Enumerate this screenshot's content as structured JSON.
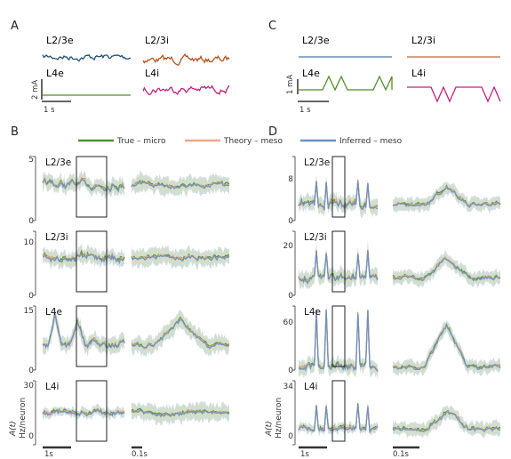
{
  "panels": {
    "A": {
      "letter": "A",
      "traces": [
        {
          "label": "L2/3e",
          "color": "#1f4e79"
        },
        {
          "label": "L2/3i",
          "color": "#b5531f"
        },
        {
          "label": "L4e",
          "color": "#4d8f2a"
        },
        {
          "label": "L4i",
          "color": "#c2217d"
        }
      ],
      "scalebar_y": "2 mA",
      "scalebar_x": "1 s"
    },
    "C": {
      "letter": "C",
      "traces": [
        {
          "label": "L2/3e",
          "color": "#4a77a8"
        },
        {
          "label": "L2/3i",
          "color": "#c0683a"
        },
        {
          "label": "L4e",
          "color": "#4d8f2a"
        },
        {
          "label": "L4i",
          "color": "#c2217d"
        }
      ],
      "scalebar_y": "1 mA",
      "scalebar_x": "1 s"
    },
    "B": {
      "letter": "B",
      "scalebar_left": "1s",
      "scalebar_right": "0.1s"
    },
    "D": {
      "letter": "D",
      "scalebar_left": "1s",
      "scalebar_right": "0.1s"
    }
  },
  "legend": [
    {
      "label": "True – micro",
      "color": "#4d8f2a"
    },
    {
      "label": "Theory – meso",
      "color": "#f2a58a"
    },
    {
      "label": "Inferred – meso",
      "color": "#6d8fbf"
    }
  ],
  "ylabel_line1": "A(t)",
  "ylabel_line2": "Hz/neuron",
  "chart_data": [
    {
      "type": "line",
      "panel": "B",
      "series": [
        {
          "name": "True – micro"
        },
        {
          "name": "Theory – meso"
        },
        {
          "name": "Inferred – meso"
        }
      ],
      "rows": [
        {
          "label": "L2/3e",
          "yticks": [
            "0",
            "5"
          ],
          "ylim": [
            0,
            5
          ],
          "baseline": 2.8
        },
        {
          "label": "L2/3i",
          "yticks": [
            "0",
            "10"
          ],
          "ylim": [
            0,
            10
          ],
          "baseline": 6
        },
        {
          "label": "L4e",
          "yticks": [
            "0",
            "15"
          ],
          "ylim": [
            0,
            15
          ],
          "baseline": 6
        },
        {
          "label": "L4i",
          "yticks": [
            "0",
            "30"
          ],
          "ylim": [
            0,
            30
          ],
          "baseline": 15
        }
      ]
    },
    {
      "type": "line",
      "panel": "D",
      "series": [
        {
          "name": "True – micro"
        },
        {
          "name": "Theory – meso"
        },
        {
          "name": "Inferred – meso"
        }
      ],
      "rows": [
        {
          "label": "L2/3e",
          "yticks": [
            "0",
            "8"
          ],
          "ylim": [
            0,
            10
          ],
          "baseline": 2.5
        },
        {
          "label": "L2/3i",
          "yticks": [
            "0",
            "20"
          ],
          "ylim": [
            0,
            25
          ],
          "baseline": 7
        },
        {
          "label": "L4e",
          "yticks": [
            "0",
            "60"
          ],
          "ylim": [
            0,
            75
          ],
          "baseline": 4
        },
        {
          "label": "L4i",
          "yticks": [
            "0",
            "34"
          ],
          "ylim": [
            0,
            40
          ],
          "baseline": 10
        }
      ]
    }
  ]
}
